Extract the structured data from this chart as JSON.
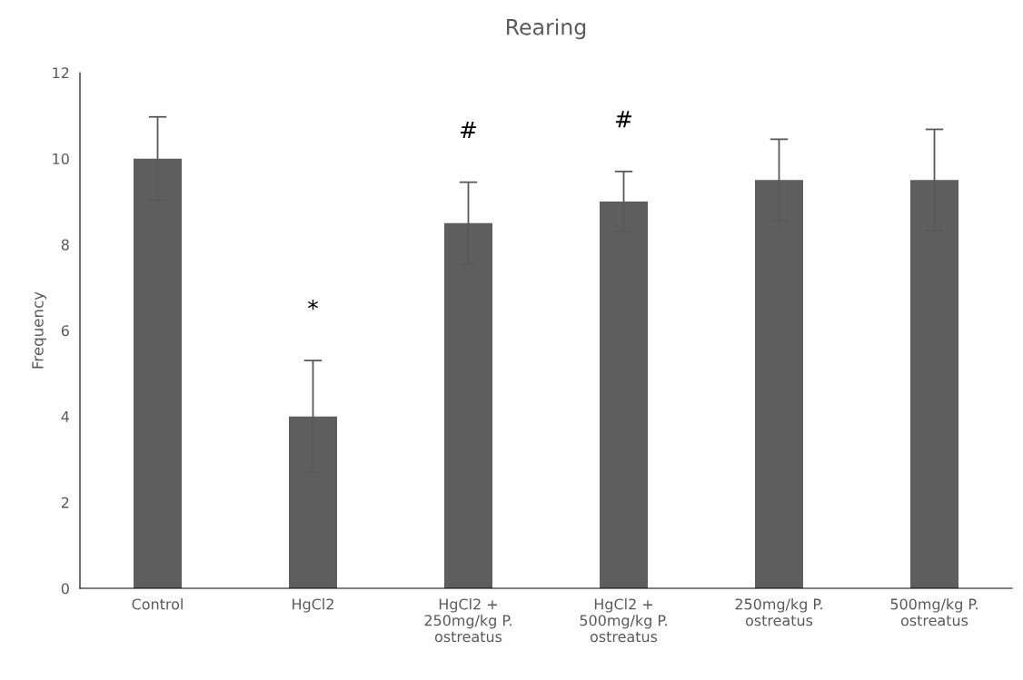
{
  "chart_data": {
    "type": "bar",
    "title": "Rearing",
    "ylabel": "Frequency",
    "categories": [
      "Control",
      "HgCl2",
      "HgCl2 +\n250mg/kg P.\nostreatus",
      "HgCl2 +\n500mg/kg P.\nostreatus",
      "250mg/kg P.\nostreatus",
      "500mg/kg P.\nostreatus"
    ],
    "values": [
      10,
      4,
      8.5,
      9,
      9.5,
      9.5
    ],
    "errors": [
      0.97,
      1.3,
      0.95,
      0.7,
      0.95,
      1.18
    ],
    "color": "#5e5e5e",
    "ylim": [
      0,
      12
    ],
    "yticks": [
      0,
      2,
      4,
      6,
      8,
      10,
      12
    ],
    "grid": false,
    "annotations": [
      {
        "text": "*",
        "x": "HgCl2",
        "y": 5.3
      },
      {
        "text": "#",
        "x": "HgCl2 +\n250mg/kg P.\nostreatus",
        "y": 9.45
      },
      {
        "text": "#",
        "x": "HgCl2 +\n500mg/kg P.\nostreatus",
        "y": 9.7
      }
    ]
  }
}
